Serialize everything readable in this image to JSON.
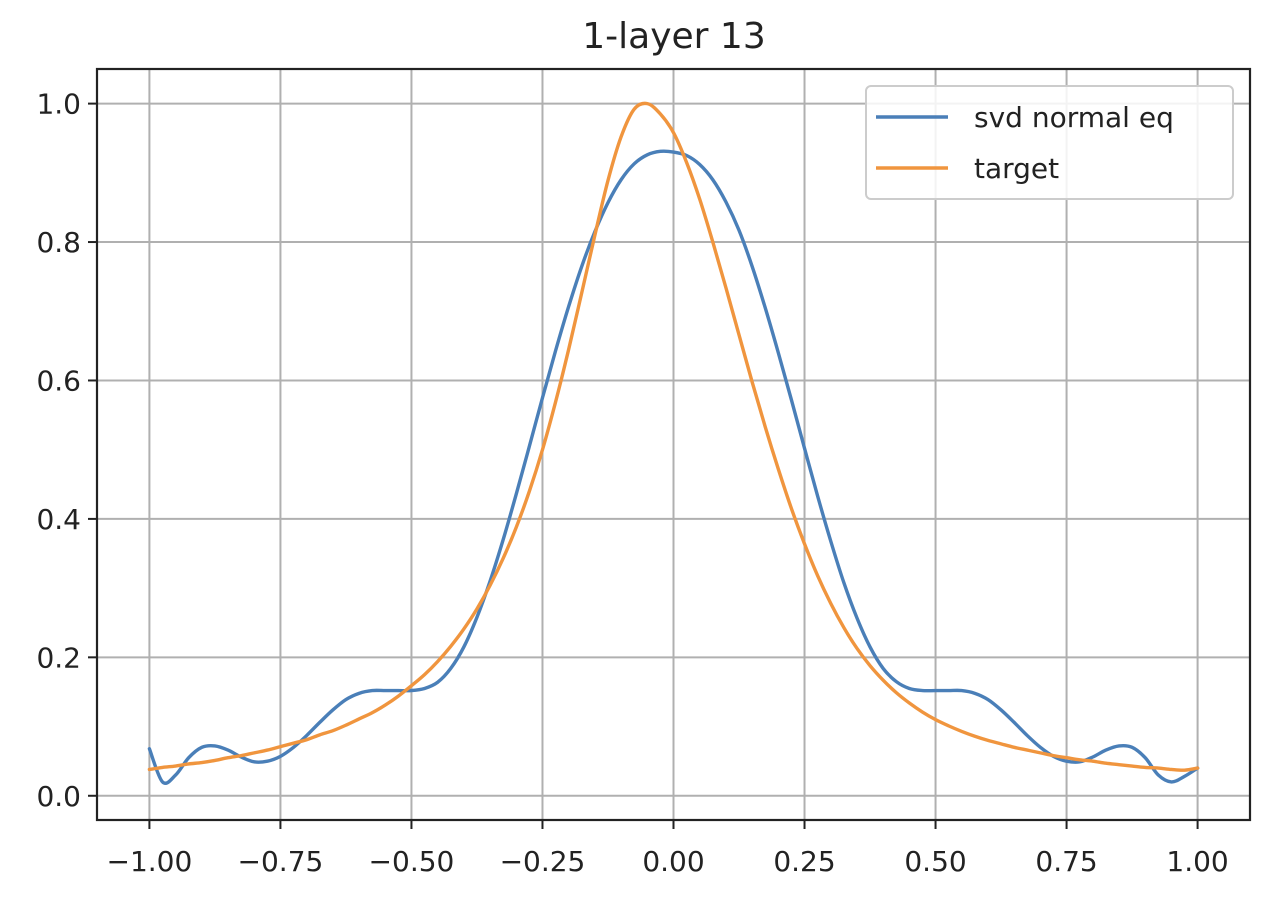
{
  "chart_data": {
    "type": "line",
    "title": "1-layer 13",
    "xlabel": "",
    "ylabel": "",
    "xlim": [
      -1.1,
      1.1
    ],
    "ylim": [
      -0.035,
      1.05
    ],
    "grid": true,
    "legend_position": "top-right",
    "x_ticks": [
      -1.0,
      -0.75,
      -0.5,
      -0.25,
      0.0,
      0.25,
      0.5,
      0.75,
      1.0
    ],
    "x_tick_labels": [
      "−1.00",
      "−0.75",
      "−0.50",
      "−0.25",
      "0.00",
      "0.25",
      "0.50",
      "0.75",
      "1.00"
    ],
    "y_ticks": [
      0.0,
      0.2,
      0.4,
      0.6,
      0.8,
      1.0
    ],
    "y_tick_labels": [
      "0.0",
      "0.2",
      "0.4",
      "0.6",
      "0.8",
      "1.0"
    ],
    "x": [
      -1.0,
      -0.975,
      -0.95,
      -0.925,
      -0.9,
      -0.875,
      -0.85,
      -0.825,
      -0.8,
      -0.775,
      -0.75,
      -0.725,
      -0.7,
      -0.675,
      -0.65,
      -0.625,
      -0.6,
      -0.575,
      -0.55,
      -0.525,
      -0.5,
      -0.475,
      -0.45,
      -0.425,
      -0.4,
      -0.375,
      -0.35,
      -0.325,
      -0.3,
      -0.275,
      -0.25,
      -0.225,
      -0.2,
      -0.175,
      -0.15,
      -0.125,
      -0.1,
      -0.075,
      -0.05,
      -0.025,
      0.0,
      0.025,
      0.05,
      0.075,
      0.1,
      0.125,
      0.15,
      0.175,
      0.2,
      0.225,
      0.25,
      0.275,
      0.3,
      0.325,
      0.35,
      0.375,
      0.4,
      0.425,
      0.45,
      0.475,
      0.5,
      0.525,
      0.55,
      0.575,
      0.6,
      0.625,
      0.65,
      0.675,
      0.7,
      0.725,
      0.75,
      0.775,
      0.8,
      0.825,
      0.85,
      0.875,
      0.9,
      0.925,
      0.95,
      0.975,
      1.0
    ],
    "series": [
      {
        "name": "svd normal eq",
        "color": "#4a7fb8",
        "values": [
          0.068,
          0.02,
          0.03,
          0.055,
          0.07,
          0.072,
          0.066,
          0.056,
          0.049,
          0.05,
          0.057,
          0.07,
          0.087,
          0.106,
          0.124,
          0.139,
          0.148,
          0.152,
          0.152,
          0.152,
          0.152,
          0.155,
          0.164,
          0.184,
          0.215,
          0.258,
          0.31,
          0.37,
          0.436,
          0.505,
          0.575,
          0.643,
          0.707,
          0.765,
          0.815,
          0.857,
          0.89,
          0.913,
          0.926,
          0.931,
          0.93,
          0.925,
          0.912,
          0.89,
          0.858,
          0.817,
          0.765,
          0.705,
          0.64,
          0.572,
          0.502,
          0.433,
          0.368,
          0.308,
          0.257,
          0.215,
          0.184,
          0.165,
          0.155,
          0.152,
          0.152,
          0.152,
          0.152,
          0.148,
          0.139,
          0.124,
          0.106,
          0.087,
          0.07,
          0.057,
          0.05,
          0.049,
          0.056,
          0.066,
          0.072,
          0.07,
          0.055,
          0.03,
          0.02,
          0.028,
          0.04
        ]
      },
      {
        "name": "target",
        "color": "#f0953e",
        "values": [
          0.038,
          0.041,
          0.043,
          0.046,
          0.048,
          0.051,
          0.055,
          0.058,
          0.062,
          0.066,
          0.071,
          0.076,
          0.081,
          0.088,
          0.094,
          0.102,
          0.111,
          0.12,
          0.131,
          0.144,
          0.159,
          0.175,
          0.194,
          0.216,
          0.241,
          0.27,
          0.304,
          0.343,
          0.388,
          0.44,
          0.5,
          0.569,
          0.645,
          0.727,
          0.81,
          0.889,
          0.952,
          0.992,
          1.0,
          0.985,
          0.958,
          0.915,
          0.862,
          0.8,
          0.734,
          0.666,
          0.598,
          0.533,
          0.472,
          0.415,
          0.364,
          0.318,
          0.278,
          0.243,
          0.213,
          0.188,
          0.167,
          0.149,
          0.134,
          0.121,
          0.11,
          0.101,
          0.093,
          0.086,
          0.08,
          0.075,
          0.07,
          0.066,
          0.062,
          0.058,
          0.055,
          0.052,
          0.05,
          0.047,
          0.045,
          0.043,
          0.041,
          0.04,
          0.038,
          0.037,
          0.04
        ]
      }
    ]
  }
}
